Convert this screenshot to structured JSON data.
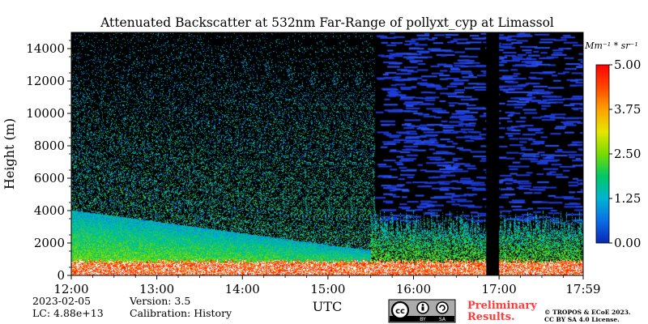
{
  "chart_data": {
    "type": "heatmap",
    "title": "Attenuated Backscatter at 532nm Far-Range of pollyxt_cyp at Limassol",
    "ylabel": "Height (m)",
    "xlabel": "UTC",
    "y_ticks": [
      "0",
      "2000",
      "4000",
      "6000",
      "8000",
      "10000",
      "12000",
      "14000"
    ],
    "y_tick_values": [
      0,
      2000,
      4000,
      6000,
      8000,
      10000,
      12000,
      14000
    ],
    "ylim": [
      0,
      15000
    ],
    "x_ticks": [
      "12:00",
      "13:00",
      "14:00",
      "15:00",
      "16:00",
      "17:00",
      "17:59"
    ],
    "x_tick_hours": [
      12.0,
      13.0,
      14.0,
      15.0,
      16.0,
      17.0,
      17.9833
    ],
    "xlim": [
      12.0,
      17.9833
    ],
    "colorbar": {
      "unit_label": "Mm⁻¹ * sr⁻¹",
      "ticks": [
        "5.00",
        "3.75",
        "2.50",
        "1.25",
        "0.00"
      ],
      "tick_values": [
        5.0,
        3.75,
        2.5,
        1.25,
        0.0
      ],
      "range": [
        0,
        5
      ],
      "colors": [
        "#0a28b4",
        "#0a6ee6",
        "#00b4d2",
        "#00c864",
        "#78dc00",
        "#e6e600",
        "#ffa000",
        "#ff4600",
        "#ff0000"
      ]
    }
  },
  "info": {
    "date": "2023-02-05",
    "version": "Version: 3.5",
    "lc": "LC: 4.88e+13",
    "calibration": "Calibration: History"
  },
  "footer": {
    "preliminary_line1": "Preliminary",
    "preliminary_line2": "Results.",
    "preliminary_color": "#ff3c3c",
    "copyright_line1": "© TROPOS & ECoE 2023.",
    "copyright_line2": "CC BY SA 4.0 License.",
    "license_badge": {
      "cc": "cc",
      "by": "BY",
      "sa": "SA",
      "icon": "creative-commons-icon"
    }
  }
}
